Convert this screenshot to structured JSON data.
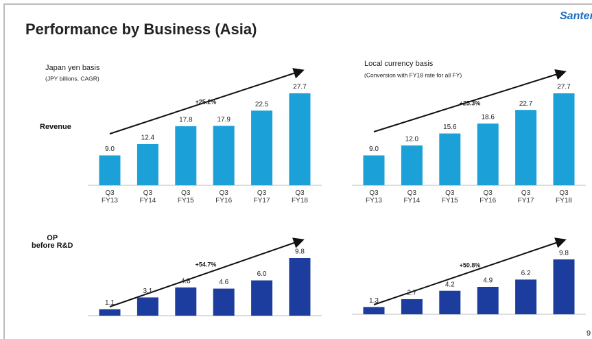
{
  "slide": {
    "title": "Performance by Business (Asia)",
    "logo": "Santen",
    "page_number": "9",
    "left_heading": "Japan yen basis",
    "left_note": "(JPY billions, CAGR)",
    "right_heading": "Local currency basis",
    "right_note": "(Conversion with FY18 rate for all FY)",
    "row_labels": [
      "Revenue",
      "OP\nbefore R&D"
    ]
  },
  "chart_data": [
    {
      "type": "bar",
      "categories": [
        "Q3\nFY13",
        "Q3\nFY14",
        "Q3\nFY15",
        "Q3\nFY16",
        "Q3\nFY17",
        "Q3\nFY18"
      ],
      "values": [
        9.0,
        12.4,
        17.8,
        17.9,
        22.5,
        27.7
      ],
      "value_labels": [
        "9.0",
        "12.4",
        "17.8",
        "17.9",
        "22.5",
        "27.7"
      ],
      "color": "#1ba0d8",
      "annotation": "+25.2%"
    },
    {
      "type": "bar",
      "categories": [
        "Q3\nFY13",
        "Q3\nFY14",
        "Q3\nFY15",
        "Q3\nFY16",
        "Q3\nFY17",
        "Q3\nFY18"
      ],
      "values": [
        9.0,
        12.0,
        15.6,
        18.6,
        22.7,
        27.7
      ],
      "value_labels": [
        "9.0",
        "12.0",
        "15.6",
        "18.6",
        "22.7",
        "27.7"
      ],
      "color": "#1ba0d8",
      "annotation": "+25.3%"
    },
    {
      "type": "bar",
      "values": [
        1.1,
        3.1,
        4.8,
        4.6,
        6.0,
        9.8
      ],
      "value_labels": [
        "1.1",
        "3.1",
        "4.8",
        "4.6",
        "6.0",
        "9.8"
      ],
      "color": "#1c3d9e",
      "annotation": "+54.7%"
    },
    {
      "type": "bar",
      "values": [
        1.3,
        2.7,
        4.2,
        4.9,
        6.2,
        9.8
      ],
      "value_labels": [
        "1.3",
        "2.7",
        "4.2",
        "4.9",
        "6.2",
        "9.8"
      ],
      "color": "#1c3d9e",
      "annotation": "+50.8%"
    }
  ]
}
